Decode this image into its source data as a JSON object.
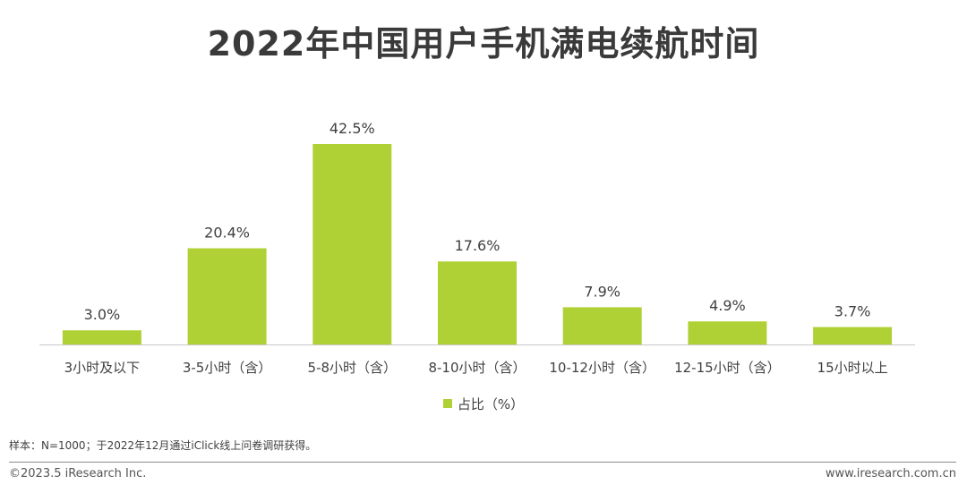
{
  "colors": {
    "bar": "#b0d136",
    "axis": "#c8c8c8",
    "text": "#404040",
    "title": "#3a3a3a"
  },
  "chart_data": {
    "type": "bar",
    "title": "2022年中国用户手机满电续航时间",
    "categories": [
      "3小时及以下",
      "3-5小时（含）",
      "5-8小时（含）",
      "8-10小时（含）",
      "10-12小时（含）",
      "12-15小时（含）",
      "15小时以上"
    ],
    "series": [
      {
        "name": "占比（%）",
        "values": [
          3.0,
          20.4,
          42.5,
          17.6,
          7.9,
          4.9,
          3.7
        ],
        "labels": [
          "3.0%",
          "20.4%",
          "42.5%",
          "17.6%",
          "7.9%",
          "4.9%",
          "3.7%"
        ]
      }
    ],
    "xlabel": "",
    "ylabel": "",
    "ylim": [
      0,
      42.5
    ],
    "grid": false,
    "legend_position": "bottom"
  },
  "note": "样本：N=1000；于2022年12月通过iClick线上问卷调研获得。",
  "footer": {
    "copyright": "©2023.5 iResearch Inc.",
    "website": "www.iresearch.com.cn"
  }
}
